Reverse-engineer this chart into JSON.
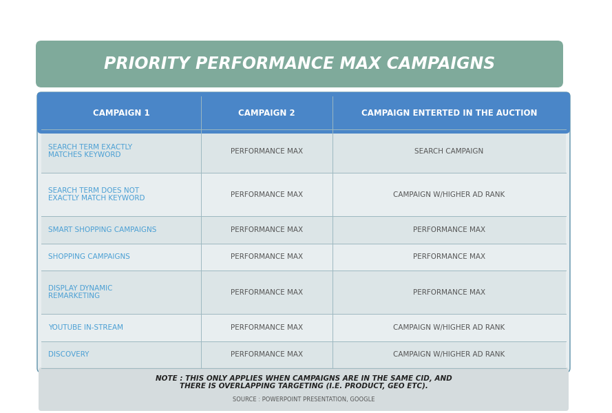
{
  "title": "PRIORITY PERFORMANCE MAX CAMPAIGNS",
  "title_bg_color": "#7faa9b",
  "title_text_color": "#ffffff",
  "header_row": [
    "CAMPAIGN 1",
    "CAMPAIGN 2",
    "CAMPAIGN ENTERTED IN THE AUCTION"
  ],
  "header_bg_color": "#4a86c8",
  "header_text_color": "#ffffff",
  "rows": [
    [
      "SEARCH TERM EXACTLY\nMATCHES KEYWORD",
      "PERFORMANCE MAX",
      "SEARCH CAMPAIGN"
    ],
    [
      "SEARCH TERM DOES NOT\nEXACTLY MATCH KEYWORD",
      "PERFORMANCE MAX",
      "CAMPAIGN W/HIGHER AD RANK"
    ],
    [
      "SMART SHOPPING CAMPAIGNS",
      "PERFORMANCE MAX",
      "PERFORMANCE MAX"
    ],
    [
      "SHOPPING CAMPAIGNS",
      "PERFORMANCE MAX",
      "PERFORMANCE MAX"
    ],
    [
      "DISPLAY DYNAMIC\nREMARKETING",
      "PERFORMANCE MAX",
      "PERFORMANCE MAX"
    ],
    [
      "YOUTUBE IN-STREAM",
      "PERFORMANCE MAX",
      "CAMPAIGN W/HIGHER AD RANK"
    ],
    [
      "DISCOVERY",
      "PERFORMANCE MAX",
      "CAMPAIGN W/HIGHER AD RANK"
    ]
  ],
  "col1_text_color": "#4a9fd4",
  "col23_text_color": "#555555",
  "row_bg_even": "#dce5e7",
  "row_bg_odd": "#e8eef0",
  "table_border_color": "#5a8fa8",
  "note_text": "NOTE : THIS ONLY APPLIES WHEN CAMPAIGNS ARE IN THE SAME CID, AND\nTHERE IS OVERLAPPING TARGETING (I.E. PRODUCT, GEO ETC).",
  "source_text": "SOURCE : POWERPOINT PRESENTATION, GOOGLE",
  "note_bg_color": "#d5dcde",
  "background_color": "#ffffff",
  "col_ratios": [
    0.305,
    0.25,
    0.445
  ]
}
